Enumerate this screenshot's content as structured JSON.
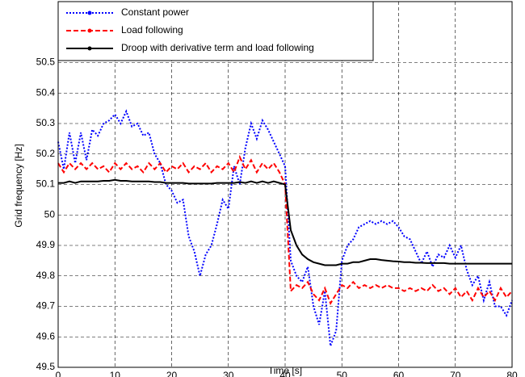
{
  "chart_data": {
    "type": "line",
    "x_label": "Time [s]",
    "y_label": "Grid frequency [Hz]",
    "x": [
      0,
      1,
      2,
      3,
      4,
      5,
      6,
      7,
      8,
      9,
      10,
      11,
      12,
      13,
      14,
      15,
      16,
      17,
      18,
      19,
      20,
      21,
      22,
      23,
      24,
      25,
      26,
      27,
      28,
      29,
      30,
      31,
      32,
      33,
      34,
      35,
      36,
      37,
      38,
      39,
      40,
      41,
      42,
      43,
      44,
      45,
      46,
      47,
      48,
      49,
      50,
      51,
      52,
      53,
      54,
      55,
      56,
      57,
      58,
      59,
      60,
      61,
      62,
      63,
      64,
      65,
      66,
      67,
      68,
      69,
      70,
      71,
      72,
      73,
      74,
      75,
      76,
      77,
      78,
      79,
      80
    ],
    "series": [
      {
        "name": "Constant power",
        "color": "#0000ff",
        "dash": "2 2",
        "values": [
          50.24,
          50.15,
          50.27,
          50.17,
          50.27,
          50.18,
          50.28,
          50.26,
          50.3,
          50.31,
          50.33,
          50.3,
          50.34,
          50.29,
          50.3,
          50.26,
          50.27,
          50.2,
          50.17,
          50.1,
          50.08,
          50.04,
          50.05,
          49.93,
          49.88,
          49.8,
          49.87,
          49.9,
          49.97,
          50.05,
          50.02,
          50.16,
          50.1,
          50.22,
          50.3,
          50.25,
          50.31,
          50.28,
          50.24,
          50.2,
          50.16,
          49.85,
          49.8,
          49.78,
          49.83,
          49.7,
          49.64,
          49.75,
          49.57,
          49.62,
          49.85,
          49.9,
          49.92,
          49.96,
          49.97,
          49.98,
          49.97,
          49.98,
          49.97,
          49.98,
          49.96,
          49.93,
          49.92,
          49.88,
          49.84,
          49.88,
          49.83,
          49.87,
          49.86,
          49.9,
          49.86,
          49.9,
          49.82,
          49.77,
          49.8,
          49.72,
          49.78,
          49.7,
          49.7,
          49.67,
          49.72
        ]
      },
      {
        "name": "Load following",
        "color": "#ff0000",
        "dash": "6 3",
        "values": [
          50.17,
          50.14,
          50.17,
          50.15,
          50.17,
          50.15,
          50.17,
          50.15,
          50.16,
          50.14,
          50.17,
          50.15,
          50.17,
          50.15,
          50.16,
          50.14,
          50.17,
          50.15,
          50.17,
          50.14,
          50.16,
          50.15,
          50.17,
          50.14,
          50.16,
          50.15,
          50.17,
          50.14,
          50.16,
          50.15,
          50.17,
          50.14,
          50.19,
          50.15,
          50.18,
          50.14,
          50.17,
          50.15,
          50.17,
          50.14,
          50.1,
          49.75,
          49.77,
          49.76,
          49.78,
          49.74,
          49.72,
          49.76,
          49.71,
          49.74,
          49.77,
          49.76,
          49.78,
          49.76,
          49.77,
          49.76,
          49.77,
          49.76,
          49.77,
          49.76,
          49.76,
          49.75,
          49.76,
          49.75,
          49.76,
          49.75,
          49.77,
          49.75,
          49.76,
          49.74,
          49.76,
          49.73,
          49.75,
          49.72,
          49.76,
          49.73,
          49.75,
          49.72,
          49.76,
          49.73,
          49.75
        ]
      },
      {
        "name": "Droop with derivative term and load following",
        "color": "#000000",
        "dash": "",
        "values": [
          50.105,
          50.105,
          50.11,
          50.105,
          50.11,
          50.11,
          50.11,
          50.11,
          50.112,
          50.112,
          50.115,
          50.112,
          50.112,
          50.11,
          50.11,
          50.11,
          50.11,
          50.108,
          50.108,
          50.105,
          50.105,
          50.105,
          50.105,
          50.103,
          50.103,
          50.103,
          50.103,
          50.103,
          50.105,
          50.105,
          50.105,
          50.105,
          50.108,
          50.105,
          50.11,
          50.105,
          50.11,
          50.105,
          50.11,
          50.105,
          50.1,
          49.95,
          49.9,
          49.87,
          49.855,
          49.845,
          49.84,
          49.835,
          49.835,
          49.835,
          49.84,
          49.84,
          49.845,
          49.845,
          49.85,
          49.855,
          49.855,
          49.852,
          49.85,
          49.848,
          49.847,
          49.845,
          49.845,
          49.843,
          49.843,
          49.842,
          49.842,
          49.842,
          49.842,
          49.84,
          49.84,
          49.84,
          49.84,
          49.84,
          49.84,
          49.84,
          49.84,
          49.84,
          49.84,
          49.84,
          49.84
        ]
      }
    ],
    "xlim": [
      0,
      80
    ],
    "xticks": [
      0,
      10,
      20,
      30,
      40,
      50,
      60,
      70,
      80
    ],
    "ylim": [
      49.5,
      50.7
    ],
    "yticks": [
      49.5,
      49.6,
      49.7,
      49.8,
      49.9,
      50,
      50.1,
      50.2,
      50.3,
      50.4,
      50.5
    ],
    "grid": true,
    "legend": "upper left"
  }
}
